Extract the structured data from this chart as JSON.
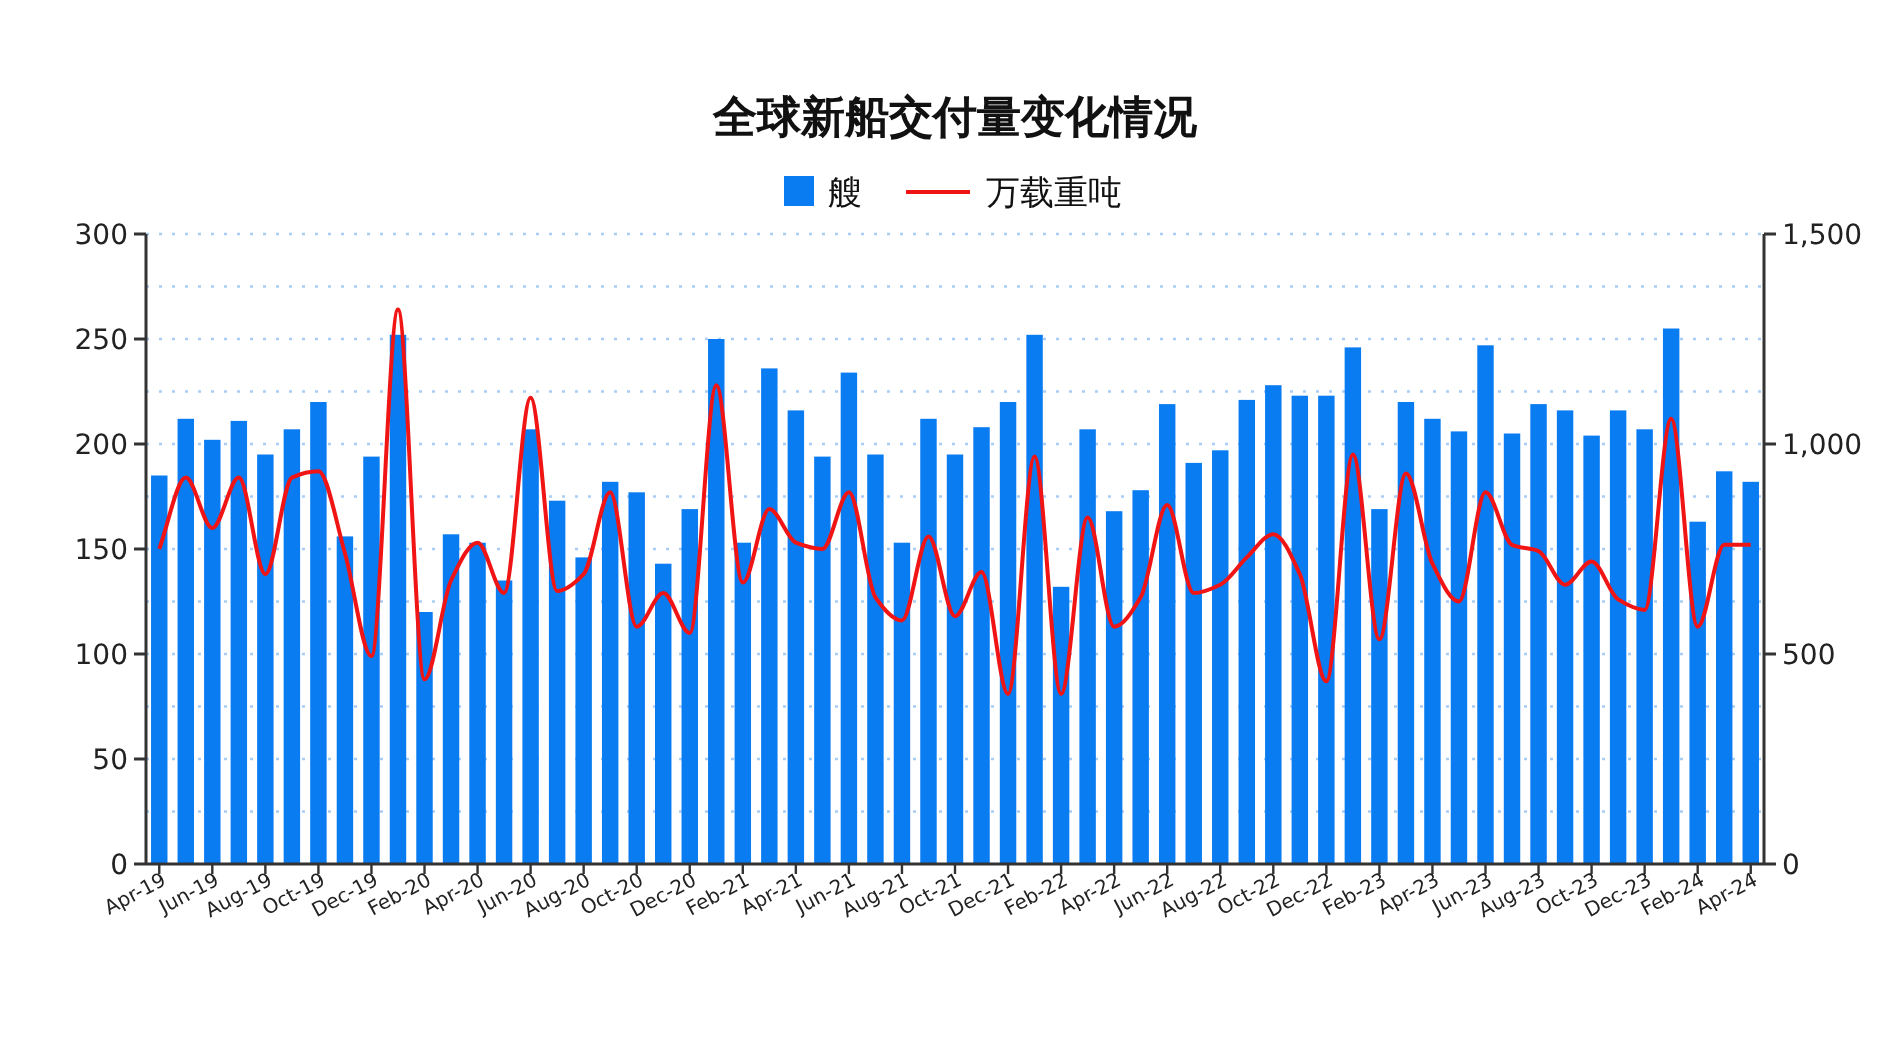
{
  "chart_data": {
    "type": "bar",
    "title": "全球新船交付量变化情况",
    "categories": [
      "Apr-19",
      null,
      "Jun-19",
      null,
      "Aug-19",
      null,
      "Oct-19",
      null,
      "Dec-19",
      null,
      "Feb-20",
      null,
      "Apr-20",
      null,
      "Jun-20",
      null,
      "Aug-20",
      null,
      "Oct-20",
      null,
      "Dec-20",
      null,
      "Feb-21",
      null,
      "Apr-21",
      null,
      "Jun-21",
      null,
      "Aug-21",
      null,
      "Oct-21",
      null,
      "Dec-21",
      null,
      "Feb-22",
      null,
      "Apr-22",
      null,
      "Jun-22",
      null,
      "Aug-22",
      null,
      "Oct-22",
      null,
      "Dec-22",
      null,
      "Feb-23",
      null,
      "Apr-23",
      null,
      "Jun-23",
      null,
      "Aug-23",
      null,
      "Oct-23",
      null,
      "Dec-23",
      null,
      "Feb-24",
      null,
      "Apr-24"
    ],
    "series": [
      {
        "name": "艘",
        "color": "#0a7cf2",
        "values": [
          185,
          212,
          202,
          211,
          195,
          207,
          220,
          156,
          194,
          252,
          120,
          157,
          153,
          135,
          207,
          173,
          146,
          182,
          177,
          143,
          169,
          250,
          153,
          236,
          216,
          194,
          234,
          195,
          153,
          212,
          195,
          208,
          220,
          252,
          132,
          207,
          168,
          178,
          219,
          191,
          197,
          221,
          228,
          223,
          223,
          246,
          169,
          220,
          212,
          206,
          247,
          205,
          219,
          216,
          204,
          216,
          207,
          255,
          163,
          187,
          182
        ]
      },
      {
        "name": "万载重吨",
        "type": "line",
        "axis": "y2",
        "color": "#f01414",
        "values": [
          750,
          920,
          800,
          920,
          690,
          920,
          935,
          740,
          495,
          1320,
          440,
          675,
          765,
          645,
          1110,
          650,
          690,
          885,
          565,
          645,
          550,
          1140,
          670,
          845,
          765,
          750,
          885,
          635,
          580,
          780,
          590,
          695,
          405,
          970,
          405,
          825,
          565,
          635,
          855,
          645,
          665,
          730,
          785,
          690,
          435,
          975,
          535,
          930,
          715,
          625,
          885,
          760,
          745,
          665,
          720,
          630,
          605,
          1060,
          565,
          760,
          760
        ]
      }
    ],
    "ylim": [
      0,
      300
    ],
    "yticks": [
      0,
      {
        "value": 25,
        "label": null
      },
      50,
      {
        "value": 75,
        "label": null
      },
      100,
      {
        "value": 125,
        "label": null
      },
      150,
      {
        "value": 175,
        "label": null
      },
      200,
      {
        "value": 225,
        "label": null
      },
      250,
      {
        "value": 275,
        "label": null
      },
      300
    ],
    "y2lim": [
      0,
      1500
    ],
    "y2ticks": [
      0,
      500,
      {
        "value": 1000,
        "label": "1,000"
      },
      {
        "value": 1500,
        "label": "1,500"
      }
    ],
    "grid": "y",
    "legend": "top",
    "line_style": "solid",
    "marker": "none"
  }
}
